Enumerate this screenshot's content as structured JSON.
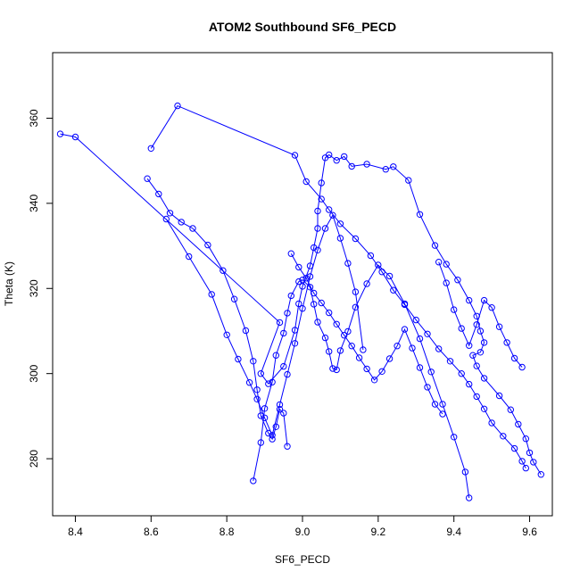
{
  "chart_data": {
    "type": "line",
    "title": "ATOM2 Southbound SF6_PECD",
    "xlabel": "SF6_PECD",
    "ylabel": "Theta (K)",
    "xlim": [
      8.34,
      9.66
    ],
    "ylim": [
      266.6,
      375.4
    ],
    "xticks": [
      "8.4",
      "8.6",
      "8.8",
      "9.0",
      "9.2",
      "9.4",
      "9.6"
    ],
    "yticks": [
      "280",
      "300",
      "320",
      "340",
      "360"
    ],
    "marker": "open-circle",
    "grid": false,
    "legend": "none",
    "colors": {
      "series": "#0000ff",
      "axis": "#000000",
      "background": "#ffffff"
    },
    "series": [
      {
        "x": [
          8.36,
          8.4,
          8.94,
          8.89,
          8.91,
          8.95,
          8.98,
          8.99,
          9.0,
          9.02,
          9.03,
          9.04,
          9.04,
          9.05,
          9.06,
          9.07,
          9.09,
          9.11,
          9.13,
          9.17,
          9.22,
          9.24,
          9.28,
          9.31,
          9.35,
          9.38,
          9.41,
          9.44,
          9.46,
          9.47,
          9.48,
          9.47,
          9.45,
          9.46,
          9.48,
          9.52,
          9.55,
          9.57,
          9.59,
          9.6,
          9.61,
          9.63
        ],
        "y": [
          356.3,
          355.6,
          312.0,
          300.0,
          297.6,
          301.7,
          310.2,
          316.4,
          320.5,
          325.3,
          329.6,
          334.1,
          338.2,
          344.8,
          350.7,
          351.4,
          350.1,
          351.0,
          348.7,
          349.2,
          348.0,
          348.6,
          345.4,
          337.4,
          330.1,
          325.7,
          322.0,
          317.2,
          313.5,
          310.0,
          307.3,
          305.0,
          304.3,
          301.8,
          298.9,
          294.8,
          291.5,
          288.1,
          284.7,
          281.4,
          279.2,
          276.3
        ]
      },
      {
        "x": [
          8.6,
          8.67,
          8.98,
          9.01,
          9.05,
          9.07,
          9.1,
          9.14,
          9.18,
          9.21,
          9.24,
          9.27,
          9.3,
          9.33,
          9.36,
          9.39,
          9.42,
          9.44,
          9.46,
          9.48,
          9.5,
          9.53,
          9.56,
          9.58,
          9.59
        ],
        "y": [
          352.9,
          362.9,
          351.3,
          345.1,
          341.0,
          338.5,
          335.2,
          331.7,
          327.7,
          323.9,
          319.6,
          316.2,
          312.6,
          309.3,
          305.8,
          302.9,
          300.0,
          297.5,
          294.6,
          291.7,
          288.4,
          285.3,
          282.4,
          279.4,
          277.8
        ]
      },
      {
        "x": [
          8.59,
          8.62,
          8.65,
          8.68,
          8.71,
          8.75,
          8.79,
          8.82,
          8.85,
          8.87,
          8.88,
          8.89,
          8.91,
          8.92,
          8.93,
          8.94,
          8.95,
          8.96
        ],
        "y": [
          345.8,
          342.2,
          337.7,
          335.6,
          334.1,
          330.2,
          324.2,
          317.5,
          310.1,
          302.9,
          296.2,
          290.1,
          286.0,
          284.6,
          287.5,
          291.6,
          290.7,
          282.9
        ]
      },
      {
        "x": [
          8.64,
          8.7,
          8.76,
          8.8,
          8.83,
          8.86,
          8.88,
          8.9,
          8.92,
          8.94,
          8.96,
          8.98,
          9.0,
          9.02,
          9.04,
          9.06,
          9.08,
          9.1,
          9.12,
          9.14,
          9.16
        ],
        "y": [
          336.3,
          327.5,
          318.6,
          309.1,
          303.4,
          297.9,
          294.0,
          289.6,
          285.5,
          292.7,
          299.8,
          307.1,
          315.3,
          322.8,
          329.0,
          334.1,
          337.2,
          331.8,
          325.9,
          319.2,
          305.6
        ]
      },
      {
        "x": [
          8.87,
          8.89,
          8.9,
          8.92,
          8.93,
          8.95,
          8.96,
          8.97,
          8.99,
          9.0,
          9.02,
          9.03,
          9.04,
          9.06,
          9.07,
          9.08,
          9.09,
          9.1,
          9.12,
          9.14,
          9.17,
          9.2,
          9.23,
          9.27,
          9.31,
          9.34,
          9.37,
          9.4,
          9.43,
          9.44
        ],
        "y": [
          274.8,
          283.8,
          291.8,
          298.0,
          304.3,
          309.5,
          314.2,
          318.3,
          321.6,
          322.0,
          320.3,
          316.3,
          312.1,
          308.4,
          305.2,
          301.2,
          300.9,
          305.4,
          309.9,
          315.6,
          321.1,
          325.5,
          322.9,
          316.4,
          308.2,
          300.4,
          292.8,
          285.1,
          276.9,
          270.8
        ]
      },
      {
        "x": [
          8.97,
          8.99,
          9.01,
          9.03,
          9.05,
          9.07,
          9.09,
          9.11,
          9.13,
          9.15,
          9.17,
          9.19,
          9.21,
          9.23,
          9.25,
          9.27,
          9.29,
          9.31,
          9.33,
          9.35,
          9.37
        ],
        "y": [
          328.2,
          325.0,
          322.4,
          318.9,
          316.6,
          314.3,
          311.6,
          309.0,
          306.5,
          303.7,
          301.1,
          298.5,
          300.5,
          303.5,
          306.5,
          310.4,
          306.0,
          301.4,
          296.8,
          292.8,
          290.5
        ]
      },
      {
        "x": [
          9.36,
          9.38,
          9.4,
          9.42,
          9.44,
          9.46,
          9.48,
          9.5,
          9.52,
          9.54,
          9.56,
          9.58
        ],
        "y": [
          326.2,
          321.3,
          315.0,
          310.6,
          306.6,
          311.5,
          317.2,
          315.5,
          311.0,
          307.3,
          303.6,
          301.5
        ]
      }
    ]
  }
}
